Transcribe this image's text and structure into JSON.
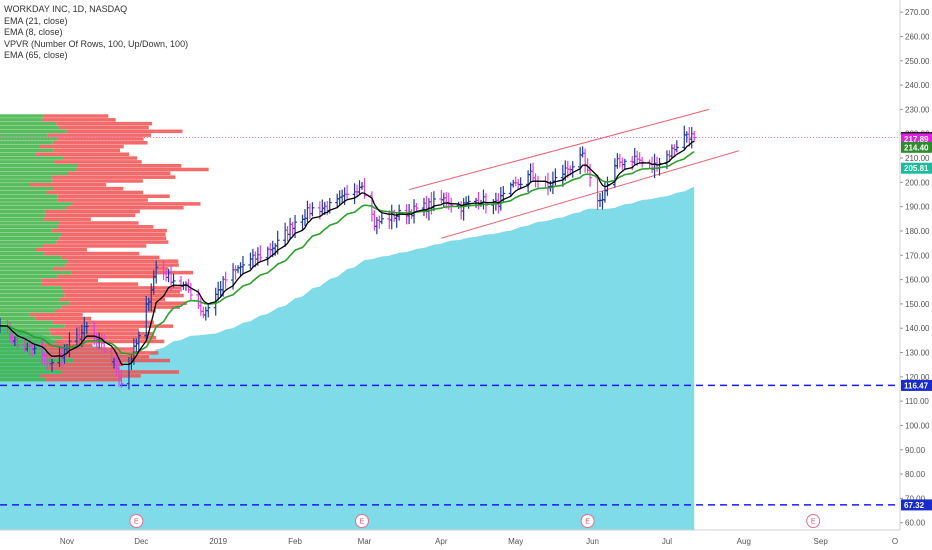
{
  "legend": {
    "title": "WORKDAY INC, 1D, NASDAQ",
    "ema21": "EMA (21, close)",
    "ema8": "EMA (8, close)",
    "vpvr": "VPVR (Number Of Rows, 100, Up/Down, 100)",
    "ema65": "EMA (65, close)"
  },
  "colors": {
    "up_bar": "#1f3b9e",
    "down_bar": "#e040e0",
    "ema8": "#000000",
    "ema21": "#2ca02c",
    "ema65_fill": "#7fdbe8",
    "channel": "#f06070",
    "dashed_support": "#1a1aff",
    "last_price_line": "#e040e0",
    "vpvr_up": "#3cb043",
    "vpvr_down": "#f05050"
  },
  "chart_data": {
    "type": "candlestick",
    "title": "WORKDAY INC, 1D, NASDAQ",
    "xlabel": "",
    "ylabel": "",
    "ylim": [
      57,
      275
    ],
    "y_ticks": [
      60,
      70,
      80,
      90,
      100,
      110,
      120,
      130,
      140,
      150,
      160,
      170,
      180,
      190,
      200,
      210,
      220,
      230,
      240,
      250,
      260,
      270
    ],
    "y_tick_labels": [
      "60.00",
      "70.00",
      "80.00",
      "90.00",
      "100.00",
      "110.00",
      "120.00",
      "130.00",
      "140.00",
      "150.00",
      "160.00",
      "170.00",
      "180.00",
      "190.00",
      "200.00",
      "210.00",
      "220.00",
      "230.00",
      "240.00",
      "250.00",
      "260.00",
      "270.00"
    ],
    "x_tick_labels": [
      "Nov",
      "Dec",
      "2019",
      "Feb",
      "Mar",
      "Apr",
      "May",
      "Jun",
      "Jul",
      "Aug",
      "Sep",
      "O"
    ],
    "x_tick_dates": [
      "2018-11-01",
      "2018-12-01",
      "2019-01-01",
      "2019-02-01",
      "2019-03-01",
      "2019-04-01",
      "2019-05-01",
      "2019-06-01",
      "2019-07-01",
      "2019-08-01",
      "2019-09-01",
      "2019-10-01"
    ],
    "x_range": [
      "2018-10-05",
      "2019-10-03"
    ],
    "price_path": [
      [
        "2018-10-05",
        143
      ],
      [
        "2018-10-12",
        133
      ],
      [
        "2018-10-19",
        131
      ],
      [
        "2018-10-26",
        125
      ],
      [
        "2018-11-02",
        133
      ],
      [
        "2018-11-09",
        140
      ],
      [
        "2018-11-16",
        131
      ],
      [
        "2018-11-21",
        124
      ],
      [
        "2018-11-23",
        118
      ],
      [
        "2018-11-30",
        136
      ],
      [
        "2018-12-07",
        165
      ],
      [
        "2018-12-14",
        160
      ],
      [
        "2018-12-21",
        155
      ],
      [
        "2018-12-26",
        146
      ],
      [
        "2019-01-04",
        160
      ],
      [
        "2019-01-11",
        166
      ],
      [
        "2019-01-18",
        170
      ],
      [
        "2019-01-25",
        175
      ],
      [
        "2019-02-01",
        184
      ],
      [
        "2019-02-08",
        189
      ],
      [
        "2019-02-15",
        190
      ],
      [
        "2019-02-22",
        194
      ],
      [
        "2019-02-28",
        200
      ],
      [
        "2019-03-05",
        183
      ],
      [
        "2019-03-12",
        186
      ],
      [
        "2019-03-19",
        188
      ],
      [
        "2019-03-26",
        190
      ],
      [
        "2019-04-02",
        193
      ],
      [
        "2019-04-09",
        190
      ],
      [
        "2019-04-16",
        193
      ],
      [
        "2019-04-23",
        191
      ],
      [
        "2019-04-30",
        198
      ],
      [
        "2019-05-07",
        203
      ],
      [
        "2019-05-14",
        198
      ],
      [
        "2019-05-21",
        205
      ],
      [
        "2019-05-28",
        210
      ],
      [
        "2019-06-01",
        197
      ],
      [
        "2019-06-04",
        192
      ],
      [
        "2019-06-11",
        208
      ],
      [
        "2019-06-18",
        210
      ],
      [
        "2019-06-25",
        206
      ],
      [
        "2019-07-02",
        212
      ],
      [
        "2019-07-09",
        220
      ],
      [
        "2019-07-12",
        218.38
      ]
    ],
    "ema8_last": 217.89,
    "ema21_last": 214.4,
    "ema65_last": 205.81,
    "last_close": 218.38,
    "support_levels": [
      116.47,
      67.32
    ],
    "channel_upper": [
      [
        "2019-03-19",
        197
      ],
      [
        "2019-07-18",
        230
      ]
    ],
    "channel_lower": [
      [
        "2019-04-01",
        177
      ],
      [
        "2019-07-30",
        213
      ]
    ],
    "price_tags": [
      {
        "label": "218.38",
        "value": 218.38,
        "color": "#000000"
      },
      {
        "label": "217.89",
        "value": 217.89,
        "color": "#e020e0"
      },
      {
        "label": "214.40",
        "value": 214.4,
        "color": "#2e8b2e"
      },
      {
        "label": "205.81",
        "value": 205.81,
        "color": "#1abc9c"
      },
      {
        "label": "116.47",
        "value": 116.47,
        "color": "#1a2bcc"
      },
      {
        "label": "67.32",
        "value": 67.32,
        "color": "#1a2bcc"
      }
    ],
    "earnings_markers": [
      {
        "label": "E",
        "date": "2018-11-29"
      },
      {
        "label": "E",
        "date": "2019-02-28"
      },
      {
        "label": "E",
        "date": "2019-05-30"
      },
      {
        "label": "E",
        "date": "2019-08-29"
      }
    ],
    "vpvr_range": [
      118,
      228
    ]
  }
}
